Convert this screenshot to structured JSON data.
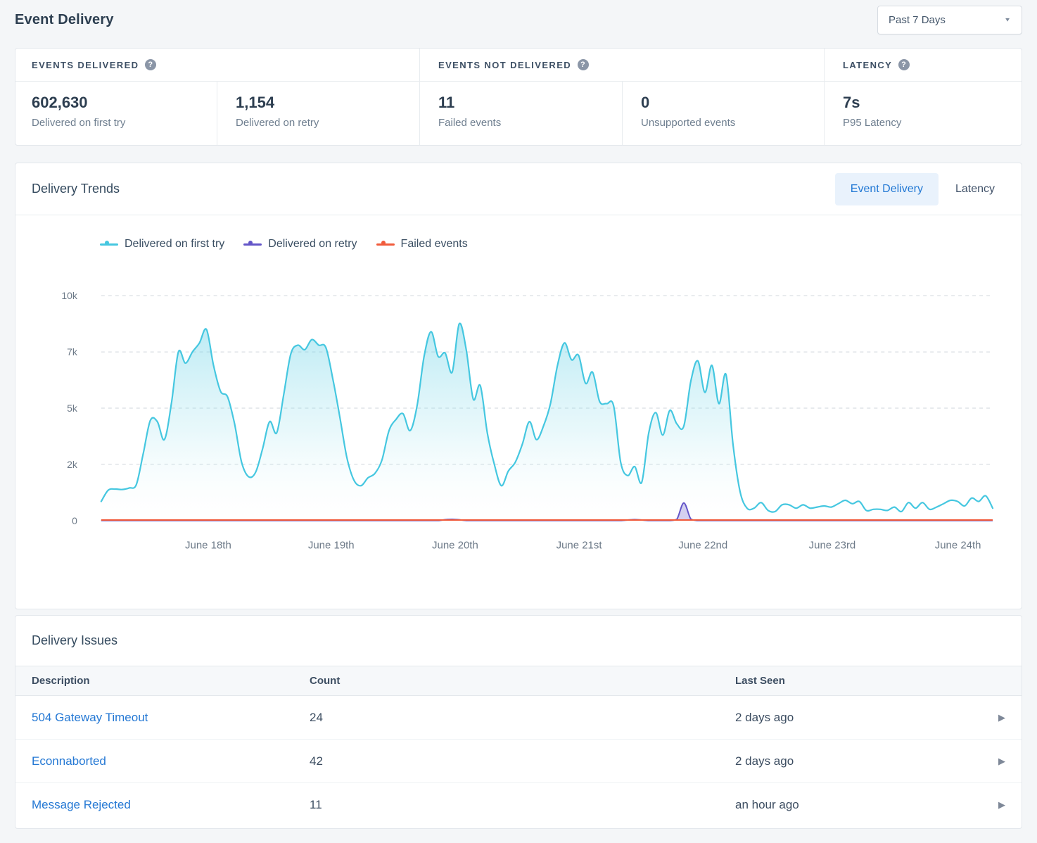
{
  "page": {
    "title": "Event Delivery",
    "time_range": "Past 7 Days"
  },
  "stats": {
    "groups": [
      {
        "label": "EVENTS DELIVERED",
        "metrics": [
          {
            "value": "602,630",
            "label": "Delivered on first try"
          },
          {
            "value": "1,154",
            "label": "Delivered on retry"
          }
        ]
      },
      {
        "label": "EVENTS NOT DELIVERED",
        "metrics": [
          {
            "value": "11",
            "label": "Failed events"
          },
          {
            "value": "0",
            "label": "Unsupported events"
          }
        ]
      },
      {
        "label": "LATENCY",
        "metrics": [
          {
            "value": "7s",
            "label": "P95 Latency"
          }
        ]
      }
    ]
  },
  "trends": {
    "title": "Delivery Trends",
    "tabs": [
      {
        "label": "Event Delivery",
        "active": true
      },
      {
        "label": "Latency",
        "active": false
      }
    ]
  },
  "chart_data": {
    "type": "area",
    "title": "Delivery Trends — Event Delivery",
    "grid": "horizontal-dashed",
    "legend_position": "top",
    "x_axis": {
      "labels": [
        "June 18th",
        "June 19th",
        "June 20th",
        "June 21st",
        "June 22nd",
        "June 23rd",
        "June 24th"
      ],
      "positions": [
        0.12,
        0.258,
        0.397,
        0.536,
        0.675,
        0.82,
        0.961
      ]
    },
    "y_axis": {
      "max": 10000,
      "ticks": [
        {
          "label": "0",
          "value": 0
        },
        {
          "label": "2k",
          "value": 2500
        },
        {
          "label": "5k",
          "value": 5000
        },
        {
          "label": "7k",
          "value": 7500
        },
        {
          "label": "10k",
          "value": 10000
        }
      ]
    },
    "series": [
      {
        "name": "Delivered on first try",
        "color": "#45c7e0",
        "values": [
          850,
          1350,
          1400,
          1380,
          1450,
          1600,
          3000,
          4450,
          4400,
          3600,
          5200,
          7500,
          7000,
          7500,
          7900,
          8500,
          6900,
          5750,
          5500,
          4300,
          2600,
          1950,
          2150,
          3200,
          4400,
          3900,
          5600,
          7400,
          7800,
          7600,
          8050,
          7800,
          7700,
          6300,
          4600,
          2800,
          1800,
          1550,
          1900,
          2100,
          2700,
          4000,
          4500,
          4750,
          4000,
          5100,
          7300,
          8400,
          7300,
          7450,
          6600,
          8750,
          7600,
          5400,
          6000,
          3900,
          2500,
          1550,
          2200,
          2600,
          3400,
          4400,
          3600,
          4200,
          5200,
          6900,
          7900,
          7150,
          7350,
          6100,
          6600,
          5300,
          5200,
          5100,
          2600,
          2000,
          2400,
          1700,
          3900,
          4800,
          3800,
          4900,
          4300,
          4200,
          6200,
          7100,
          5700,
          6900,
          5200,
          6500,
          3400,
          1300,
          550,
          550,
          800,
          450,
          400,
          700,
          700,
          550,
          700,
          550,
          600,
          650,
          600,
          750,
          900,
          750,
          850,
          450,
          500,
          500,
          450,
          600,
          400,
          800,
          550,
          800,
          500,
          600,
          750,
          900,
          850,
          650,
          1000,
          850,
          1100,
          550
        ]
      },
      {
        "name": "Delivered on retry",
        "color": "#6355c8",
        "values": [
          0,
          0,
          0,
          0,
          0,
          0,
          0,
          0,
          0,
          0,
          0,
          0,
          0,
          0,
          0,
          0,
          0,
          0,
          0,
          0,
          0,
          0,
          0,
          0,
          0,
          0,
          0,
          0,
          0,
          0,
          0,
          0,
          0,
          0,
          0,
          0,
          0,
          0,
          0,
          0,
          0,
          0,
          0,
          0,
          0,
          0,
          0,
          0,
          0,
          40,
          55,
          35,
          0,
          0,
          0,
          0,
          0,
          0,
          0,
          0,
          0,
          0,
          0,
          0,
          0,
          0,
          0,
          0,
          0,
          0,
          0,
          0,
          0,
          0,
          0,
          25,
          45,
          25,
          0,
          0,
          0,
          0,
          60,
          780,
          70,
          0,
          0,
          0,
          0,
          0,
          0,
          0,
          0,
          0,
          0,
          0,
          0,
          0,
          0,
          0,
          0,
          0,
          0,
          0,
          0,
          0,
          0,
          0,
          0,
          0,
          0,
          0,
          0,
          0,
          0,
          0,
          0,
          0,
          0,
          0,
          0,
          0,
          0,
          0,
          0,
          0,
          0,
          0
        ]
      },
      {
        "name": "Failed events",
        "color": "#f15b3b",
        "values": [
          25,
          25,
          25,
          25,
          25,
          25,
          25,
          25,
          25,
          25,
          25,
          25,
          25,
          25,
          25,
          25,
          25,
          25,
          25,
          25,
          25,
          25,
          25,
          25,
          25,
          25,
          25,
          25,
          25,
          25,
          25,
          25,
          25,
          25,
          25,
          25,
          25,
          25,
          25,
          25,
          25,
          25,
          25,
          25,
          25,
          25,
          25,
          25,
          25,
          25,
          25,
          25,
          25,
          25,
          25,
          25,
          25,
          25,
          25,
          25,
          25,
          25,
          25,
          25,
          25,
          25,
          25,
          25,
          25,
          25,
          25,
          25,
          25,
          25,
          25,
          25,
          25,
          25,
          25,
          25,
          25,
          25,
          25,
          25,
          25,
          25,
          25,
          25,
          25,
          25,
          25,
          25,
          25,
          25,
          25,
          25,
          25,
          25,
          25,
          25,
          25,
          25,
          25,
          25,
          25,
          25,
          25,
          25,
          25,
          25,
          25,
          25,
          25,
          25,
          25,
          25,
          25,
          25,
          25,
          25,
          25,
          25,
          25,
          25,
          25,
          25,
          25,
          25
        ]
      }
    ]
  },
  "issues": {
    "title": "Delivery Issues",
    "columns": {
      "description": "Description",
      "count": "Count",
      "last_seen": "Last Seen"
    },
    "rows": [
      {
        "description": "504 Gateway Timeout",
        "count": "24",
        "last_seen": "2 days ago"
      },
      {
        "description": "Econnaborted",
        "count": "42",
        "last_seen": "2 days ago"
      },
      {
        "description": "Message Rejected",
        "count": "11",
        "last_seen": "an hour ago"
      }
    ]
  }
}
